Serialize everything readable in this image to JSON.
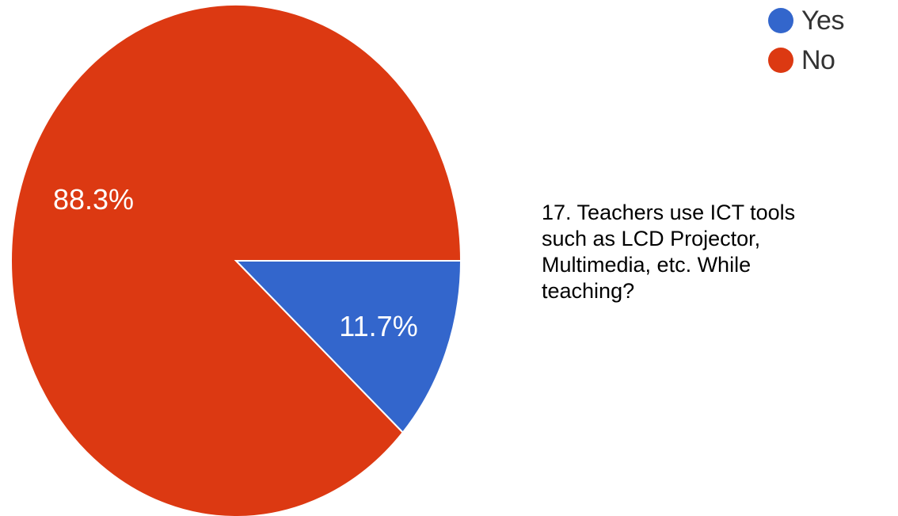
{
  "chart_data": {
    "type": "pie",
    "title": "17. Teachers use ICT tools such as LCD Projector, Multimedia, etc. While teaching?",
    "slices": [
      {
        "label": "Yes",
        "value": 11.7,
        "display": "11.7%",
        "color": "#3366cc"
      },
      {
        "label": "No",
        "value": 88.3,
        "display": "88.3%",
        "color": "#dc3912"
      }
    ],
    "legend_position": "top-right"
  },
  "question": {
    "line1": "17. Teachers use ICT tools",
    "line2": "such as LCD Projector,",
    "line3": "Multimedia, etc. While",
    "line4": "teaching?"
  }
}
